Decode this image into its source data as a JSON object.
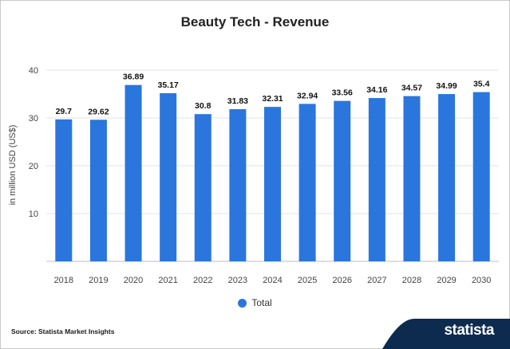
{
  "chart_data": {
    "type": "bar",
    "title": "Beauty Tech - Revenue",
    "ylabel": "in million USD (US$)",
    "xlabel": "",
    "categories": [
      "2018",
      "2019",
      "2020",
      "2021",
      "2022",
      "2023",
      "2024",
      "2025",
      "2026",
      "2027",
      "2028",
      "2029",
      "2030"
    ],
    "series": [
      {
        "name": "Total",
        "values": [
          29.7,
          29.62,
          36.89,
          35.17,
          30.8,
          31.83,
          32.31,
          32.94,
          33.56,
          34.16,
          34.57,
          34.99,
          35.4
        ]
      }
    ],
    "data_labels": [
      "29.7",
      "29.62",
      "36.89",
      "35.17",
      "30.8",
      "31.83",
      "32.31",
      "32.94",
      "33.56",
      "34.16",
      "34.57",
      "34.99",
      "35.4"
    ],
    "ylim": [
      0,
      40
    ],
    "yticks": [
      10,
      20,
      30,
      40
    ],
    "grid": true,
    "legend_position": "bottom-center",
    "bar_color": "#2a76dd"
  },
  "footer": {
    "source": "Source: Statista Market Insights",
    "brand": "statista",
    "brand_color": "#0d2b4f"
  }
}
